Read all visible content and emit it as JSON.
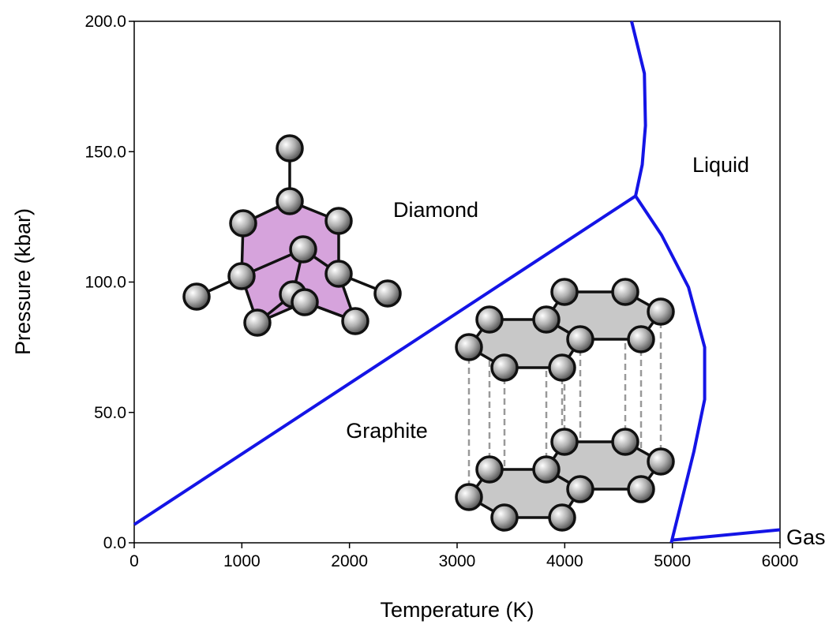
{
  "chart_data": {
    "type": "line",
    "x_label": "Temperature (K)",
    "y_label": "Pressure (kbar)",
    "xlim": [
      0,
      6000
    ],
    "xticks": [
      0,
      1000,
      2000,
      3000,
      4000,
      5000,
      6000
    ],
    "ylim": [
      0,
      200
    ],
    "yticks": [
      {
        "value": 0,
        "label": "0.0"
      },
      {
        "value": 50,
        "label": "50.0"
      },
      {
        "value": 100,
        "label": "100.0"
      },
      {
        "value": 150,
        "label": "150.0"
      },
      {
        "value": 200,
        "label": "200.0"
      }
    ],
    "series": [
      {
        "color": "#1414e6",
        "x": [
          0,
          4658
        ],
        "values": [
          7,
          133
        ]
      },
      {
        "color": "#1414e6",
        "x": [
          4658,
          4720,
          4750,
          4740,
          4621
        ],
        "values": [
          133,
          145,
          160,
          180,
          200
        ]
      },
      {
        "color": "#1414e6",
        "x": [
          4658,
          4900,
          5150,
          5300,
          5300,
          5200,
          5080,
          4990
        ],
        "values": [
          133,
          118,
          98,
          75,
          55,
          35,
          15,
          0
        ]
      },
      {
        "color": "#1414e6",
        "x": [
          4990,
          6000
        ],
        "values": [
          1,
          5
        ]
      }
    ],
    "annotations": [
      "Diamond",
      "Liquid",
      "Graphite",
      "Gas"
    ]
  }
}
